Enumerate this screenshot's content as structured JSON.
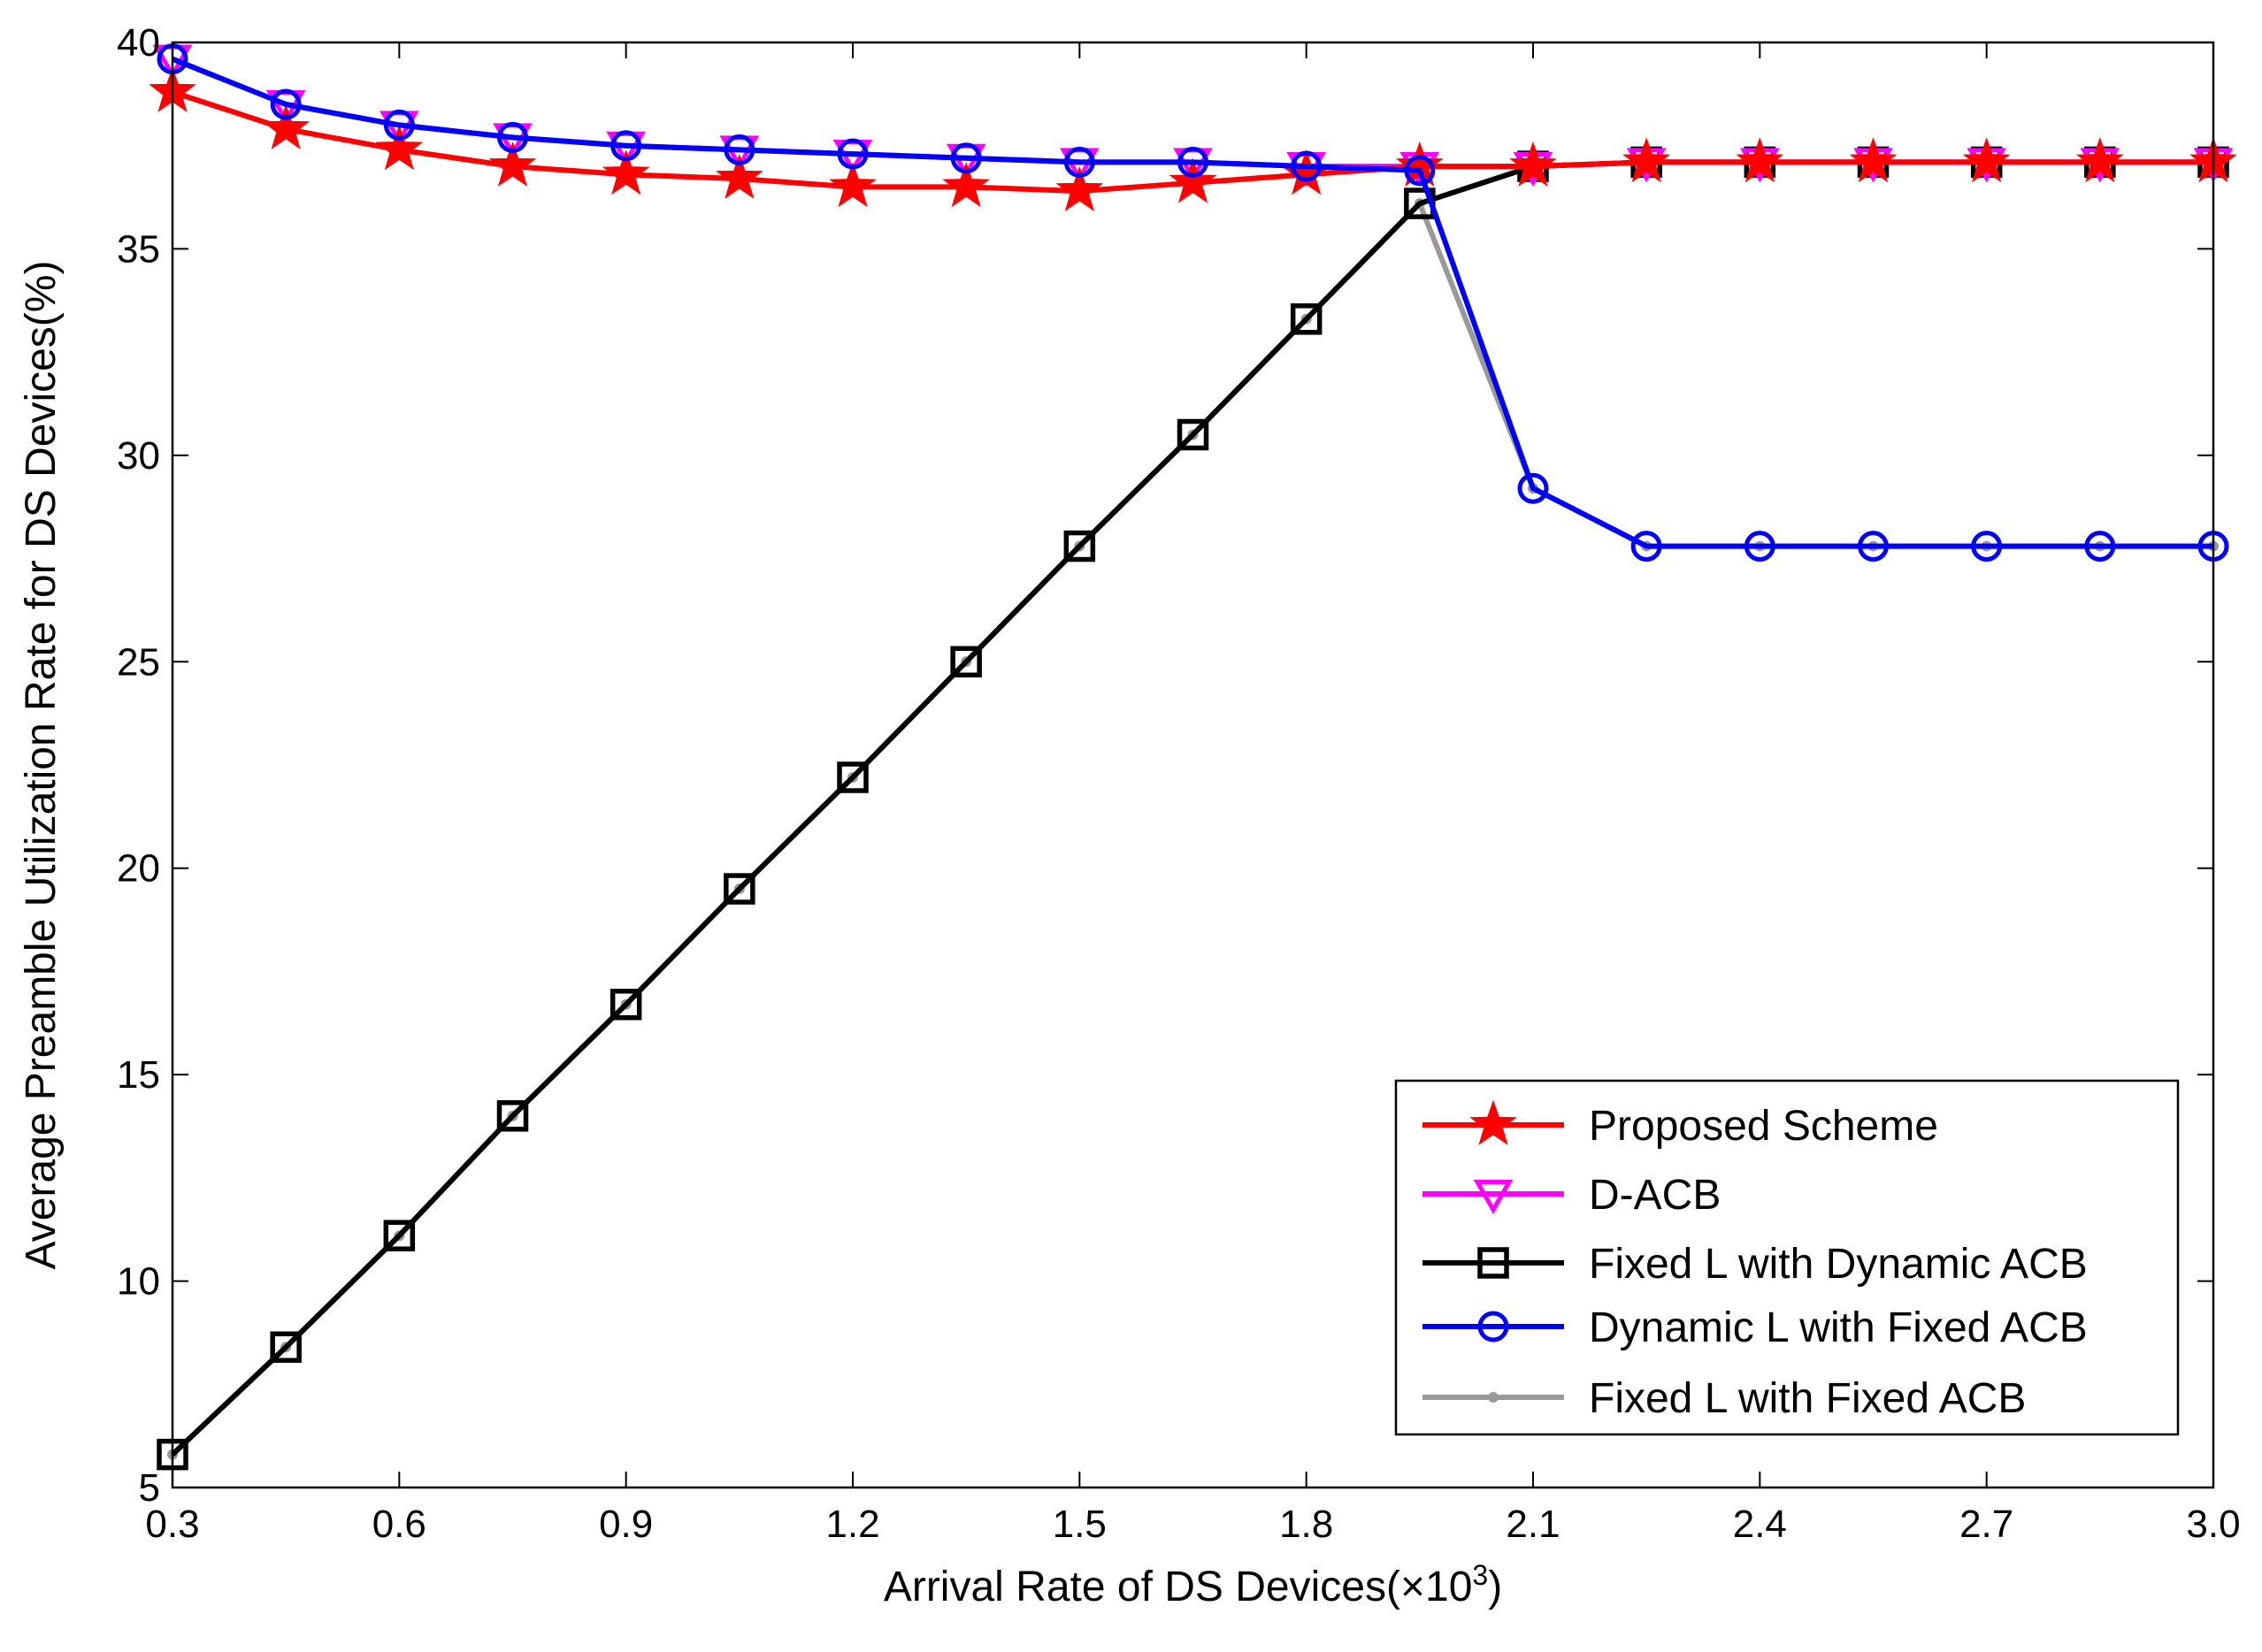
{
  "chart_data": {
    "type": "line",
    "title": "",
    "xlabel": "Arrival Rate of DS Devices(×10",
    "xlabel_sup": "3",
    "xlabel_end": ")",
    "ylabel": "Average Preamble Utilization Rate for DS Devices(%)",
    "xlim": [
      0.3,
      3.0
    ],
    "ylim": [
      5,
      40
    ],
    "xticks": [
      0.3,
      0.6,
      0.9,
      1.2,
      1.5,
      1.8,
      2.1,
      2.4,
      2.7,
      3.0
    ],
    "xtick_labels": [
      "0.3",
      "0.6",
      "0.9",
      "1.2",
      "1.5",
      "1.8",
      "2.1",
      "2.4",
      "2.7",
      "3.0"
    ],
    "yticks": [
      5,
      10,
      15,
      20,
      25,
      30,
      35,
      40
    ],
    "ytick_labels": [
      "5",
      "10",
      "15",
      "20",
      "25",
      "30",
      "35",
      "40"
    ],
    "grid": false,
    "legend_position": "bottom-right",
    "x": [
      0.3,
      0.45,
      0.6,
      0.75,
      0.9,
      1.05,
      1.2,
      1.35,
      1.5,
      1.65,
      1.8,
      1.95,
      2.1,
      2.25,
      2.4,
      2.55,
      2.7,
      2.85,
      3.0
    ],
    "series": [
      {
        "name": "Fixed L with Fixed ACB",
        "color": "#999999",
        "marker": "dot",
        "values": [
          5.8,
          8.4,
          11.1,
          14.0,
          16.7,
          19.5,
          22.2,
          25.0,
          27.8,
          30.5,
          33.3,
          36.1,
          29.2,
          27.8,
          27.8,
          27.8,
          27.8,
          27.8,
          27.8
        ]
      },
      {
        "name": "Fixed L with Dynamic ACB",
        "color": "#000000",
        "marker": "square",
        "values": [
          5.8,
          8.4,
          11.1,
          14.0,
          16.7,
          19.5,
          22.2,
          25.0,
          27.8,
          30.5,
          33.3,
          36.1,
          37.0,
          37.1,
          37.1,
          37.1,
          37.1,
          37.1,
          37.1
        ]
      },
      {
        "name": "D-ACB",
        "color": "#ff00ff",
        "marker": "triangle-down",
        "values": [
          39.6,
          38.5,
          38.0,
          37.7,
          37.5,
          37.4,
          37.3,
          37.2,
          37.1,
          37.1,
          37.0,
          37.0,
          37.0,
          37.1,
          37.1,
          37.1,
          37.1,
          37.1,
          37.1
        ]
      },
      {
        "name": "Proposed Scheme",
        "color": "#ff0000",
        "marker": "star",
        "values": [
          38.8,
          37.9,
          37.4,
          37.0,
          36.8,
          36.7,
          36.5,
          36.5,
          36.4,
          36.6,
          36.8,
          37.0,
          37.0,
          37.1,
          37.1,
          37.1,
          37.1,
          37.1,
          37.1
        ]
      },
      {
        "name": "Dynamic L with Fixed ACB",
        "color": "#0000ff",
        "marker": "circle",
        "values": [
          39.6,
          38.5,
          38.0,
          37.7,
          37.5,
          37.4,
          37.3,
          37.2,
          37.1,
          37.1,
          37.0,
          36.9,
          29.2,
          27.8,
          27.8,
          27.8,
          27.8,
          27.8,
          27.8
        ]
      }
    ],
    "legend": [
      {
        "name": "Proposed Scheme",
        "color": "#ff0000",
        "marker": "star"
      },
      {
        "name": "D-ACB",
        "color": "#ff00ff",
        "marker": "triangle-down"
      },
      {
        "name": "Fixed L with Dynamic ACB",
        "color": "#000000",
        "marker": "square"
      },
      {
        "name": "Dynamic L with Fixed ACB",
        "color": "#0000ff",
        "marker": "circle"
      },
      {
        "name": "Fixed L with Fixed ACB",
        "color": "#999999",
        "marker": "dot"
      }
    ]
  }
}
